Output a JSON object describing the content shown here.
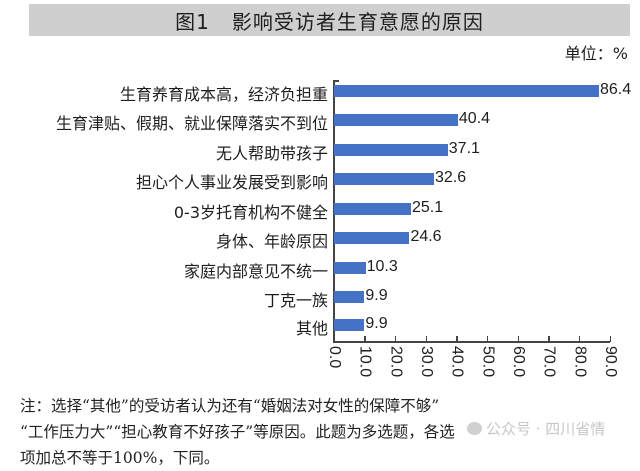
{
  "title": {
    "figure": "图1",
    "text": "影响受访者生育意愿的原因"
  },
  "unit": "单位：%",
  "note": {
    "lines": [
      "注：选择“其他”的受访者认为还有“婚姻法对女性的保障不够”",
      "“工作压力大”“担心教育不好孩子”等原因。此题为多选题，各选",
      "项加总不等于100%，下同。"
    ]
  },
  "watermark": "公众号 · 四川省情",
  "colors": {
    "bar": "#4472c4",
    "title_bg": "#cfcfcf"
  },
  "chart_data": {
    "type": "bar",
    "orientation": "horizontal",
    "title": "图1 影响受访者生育意愿的原因",
    "unit": "%",
    "categories": [
      "生育养育成本高，经济负担重",
      "生育津贴、假期、就业保障落实不到位",
      "无人帮助带孩子",
      "担心个人事业发展受到影响",
      "0-3岁托育机构不健全",
      "身体、年龄原因",
      "家庭内部意见不统一",
      "丁克一族",
      "其他"
    ],
    "values": [
      86.4,
      40.4,
      37.1,
      32.6,
      25.1,
      24.6,
      10.3,
      9.9,
      9.9
    ],
    "value_labels": [
      "86.4",
      "40.4",
      "37.1",
      "32.6",
      "25.1",
      "24.6",
      "10.3",
      "9.9",
      "9.9"
    ],
    "xlabel": "",
    "ylabel": "",
    "xlim": [
      0,
      90
    ],
    "xticks": [
      "0.0",
      "10.0",
      "20.0",
      "30.0",
      "40.0",
      "50.0",
      "60.0",
      "70.0",
      "80.0",
      "90.0"
    ],
    "grid": false,
    "legend": null
  }
}
